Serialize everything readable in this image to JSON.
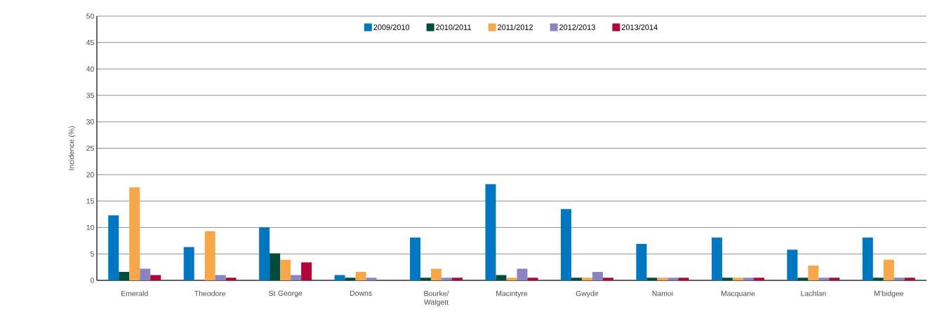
{
  "chart_data": {
    "type": "bar",
    "ylabel": "Incidence (%)",
    "categories": [
      "Emerald",
      "Theodore",
      "St George",
      "Downs",
      "Bourke/ Walgett",
      "Macintyre",
      "Gwydir",
      "Namoi",
      "Macquarie",
      "Lachlan",
      "M’bidgee"
    ],
    "series": [
      {
        "name": "2009/2010",
        "color": "#0077c0",
        "values": [
          12.3,
          6.3,
          10,
          1,
          8.1,
          18.2,
          13.5,
          6.9,
          8.1,
          5.8,
          8.1
        ]
      },
      {
        "name": "2010/2011",
        "color": "#004d40",
        "values": [
          1.6,
          0,
          5.1,
          0.5,
          0.5,
          1,
          0.5,
          0.5,
          0.5,
          0.5,
          0.5
        ]
      },
      {
        "name": "2011/2012",
        "color": "#f7a64a",
        "values": [
          17.6,
          9.3,
          3.9,
          1.6,
          2.2,
          0.5,
          0.5,
          0.5,
          0.5,
          2.8,
          3.9
        ]
      },
      {
        "name": "2012/2013",
        "color": "#8a84c0",
        "values": [
          2.2,
          1,
          1,
          0.5,
          0.5,
          2.2,
          1.6,
          0.5,
          0.5,
          0.5,
          0.5
        ]
      },
      {
        "name": "2013/2014",
        "color": "#b0063a",
        "values": [
          1,
          0.5,
          3.4,
          0,
          0.5,
          0.5,
          0.5,
          0.5,
          0.5,
          0.5,
          0.5
        ]
      }
    ],
    "ylim": [
      0,
      50
    ],
    "yticks": [
      0,
      5,
      10,
      15,
      20,
      25,
      30,
      35,
      40,
      45,
      50
    ],
    "grid": "y",
    "legend": "top"
  }
}
